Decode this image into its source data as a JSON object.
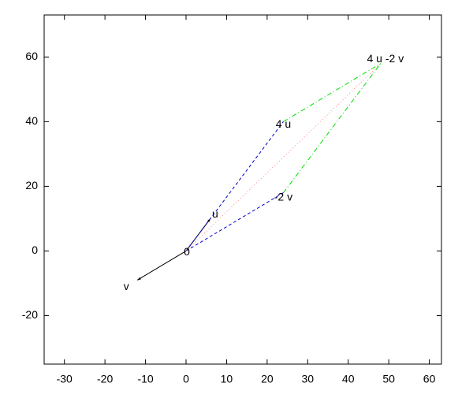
{
  "chart_data": {
    "type": "vector",
    "xlim": [
      -35,
      63
    ],
    "ylim": [
      -35,
      73
    ],
    "xticks": [
      -30,
      -20,
      -10,
      0,
      10,
      20,
      30,
      40,
      50,
      60
    ],
    "yticks": [
      -20,
      0,
      20,
      40,
      60
    ],
    "points": [
      {
        "label": "0",
        "x": 0,
        "y": 0
      },
      {
        "label": "u",
        "x": 6,
        "y": 10
      },
      {
        "label": "v",
        "x": -12,
        "y": -9
      },
      {
        "label": "4 u",
        "x": 24,
        "y": 40
      },
      {
        "label": "-2 v",
        "x": 24,
        "y": 18
      },
      {
        "label": "4 u -2 v",
        "x": 48,
        "y": 58
      }
    ],
    "segments": [
      {
        "from": [
          0,
          0
        ],
        "to": [
          6,
          10
        ],
        "color": "#000000",
        "style": "solid",
        "arrow": true
      },
      {
        "from": [
          0,
          0
        ],
        "to": [
          -12,
          -9
        ],
        "color": "#000000",
        "style": "solid",
        "arrow": true
      },
      {
        "from": [
          0,
          0
        ],
        "to": [
          24,
          40
        ],
        "color": "#0000cc",
        "style": "dashed",
        "arrow": false
      },
      {
        "from": [
          0,
          0
        ],
        "to": [
          24,
          18
        ],
        "color": "#0000cc",
        "style": "dashed",
        "arrow": false
      },
      {
        "from": [
          24,
          40
        ],
        "to": [
          48,
          58
        ],
        "color": "#00dd00",
        "style": "dashdot",
        "arrow": false
      },
      {
        "from": [
          24,
          18
        ],
        "to": [
          48,
          58
        ],
        "color": "#00dd00",
        "style": "dashdot",
        "arrow": false
      },
      {
        "from": [
          0,
          0
        ],
        "to": [
          48,
          58
        ],
        "color": "#ff8888",
        "style": "dotted",
        "arrow": false
      }
    ]
  }
}
